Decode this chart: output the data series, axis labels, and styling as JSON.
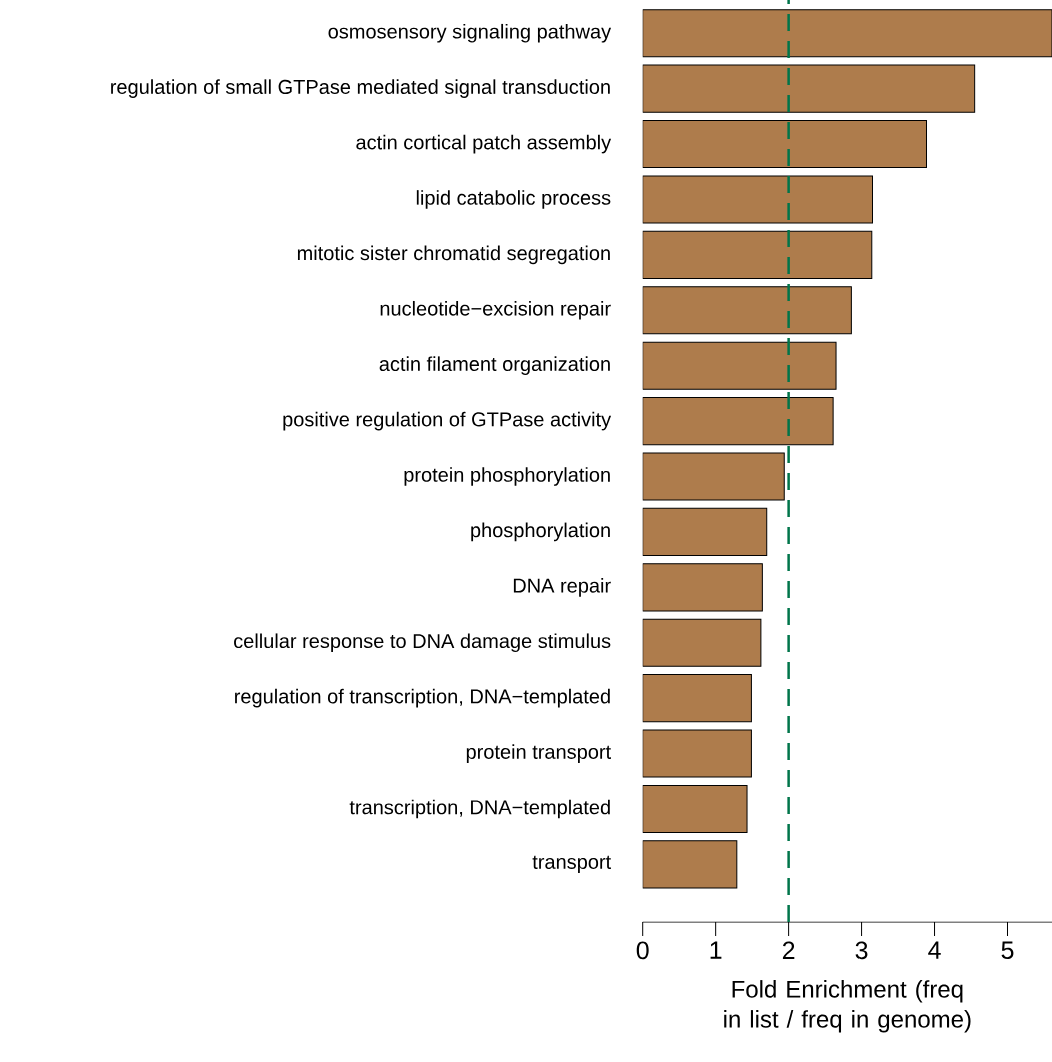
{
  "chart_data": {
    "type": "bar",
    "orientation": "horizontal",
    "xlabel": "Fold Enrichment (freq in list / freq in genome)",
    "categories": [
      "osmosensory signaling pathway",
      "regulation of small GTPase mediated signal transduction",
      "actin cortical patch assembly",
      "lipid catabolic process",
      "mitotic sister chromatid segregation",
      "nucleotide−excision repair",
      "actin filament organization",
      "positive regulation of GTPase activity",
      "protein phosphorylation",
      "phosphorylation",
      "DNA repair",
      "cellular response to DNA damage stimulus",
      "regulation of transcription, DNA−templated",
      "protein transport",
      "transcription, DNA−templated",
      "transport"
    ],
    "values": [
      5.61,
      4.55,
      3.89,
      3.15,
      3.14,
      2.86,
      2.65,
      2.61,
      1.94,
      1.7,
      1.64,
      1.62,
      1.49,
      1.49,
      1.43,
      1.29
    ],
    "color": "#ae7c4c",
    "xlim": [
      0,
      5.61
    ],
    "xticks": [
      0,
      1,
      2,
      3,
      4,
      5
    ],
    "ref_lines": [
      {
        "axis": "x",
        "value": 2,
        "color": "#00754a",
        "line_style": "dashed"
      }
    ]
  }
}
